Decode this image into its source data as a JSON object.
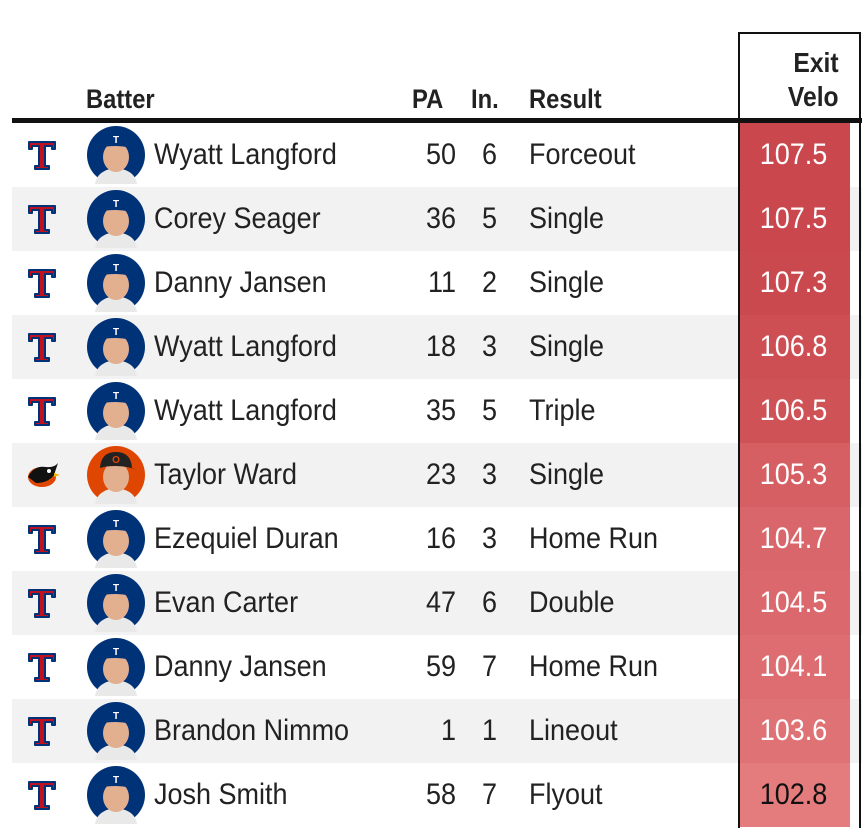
{
  "header": {
    "batter": "Batter",
    "pa": "PA",
    "inning": "In.",
    "result": "Result",
    "exit_velo_line1": "Exit",
    "exit_velo_line2": "Velo"
  },
  "colors": {
    "velo_high": "#c9474d",
    "velo_low": "#e47b7d",
    "rangers_red": "#c0111f",
    "rangers_blue": "#003278",
    "orioles_orange": "#df4601"
  },
  "chart_data": {
    "type": "table",
    "columns": [
      "Batter",
      "PA",
      "In.",
      "Result",
      "Exit Velo"
    ],
    "rows": [
      {
        "team_icon": "rangers-logo-icon",
        "batter": "Wyatt Langford",
        "pa": "50",
        "inning": "6",
        "result": "Forceout",
        "exit_velo": "107.5"
      },
      {
        "team_icon": "rangers-logo-icon",
        "batter": "Corey Seager",
        "pa": "36",
        "inning": "5",
        "result": "Single",
        "exit_velo": "107.5"
      },
      {
        "team_icon": "rangers-logo-icon",
        "batter": "Danny Jansen",
        "pa": "11",
        "inning": "2",
        "result": "Single",
        "exit_velo": "107.3"
      },
      {
        "team_icon": "rangers-logo-icon",
        "batter": "Wyatt Langford",
        "pa": "18",
        "inning": "3",
        "result": "Single",
        "exit_velo": "106.8"
      },
      {
        "team_icon": "rangers-logo-icon",
        "batter": "Wyatt Langford",
        "pa": "35",
        "inning": "5",
        "result": "Triple",
        "exit_velo": "106.5"
      },
      {
        "team_icon": "orioles-logo-icon",
        "batter": "Taylor Ward",
        "pa": "23",
        "inning": "3",
        "result": "Single",
        "exit_velo": "105.3"
      },
      {
        "team_icon": "rangers-logo-icon",
        "batter": "Ezequiel Duran",
        "pa": "16",
        "inning": "3",
        "result": "Home Run",
        "exit_velo": "104.7"
      },
      {
        "team_icon": "rangers-logo-icon",
        "batter": "Evan Carter",
        "pa": "47",
        "inning": "6",
        "result": "Double",
        "exit_velo": "104.5"
      },
      {
        "team_icon": "rangers-logo-icon",
        "batter": "Danny Jansen",
        "pa": "59",
        "inning": "7",
        "result": "Home Run",
        "exit_velo": "104.1"
      },
      {
        "team_icon": "rangers-logo-icon",
        "batter": "Brandon Nimmo",
        "pa": "1",
        "inning": "1",
        "result": "Lineout",
        "exit_velo": "103.6"
      },
      {
        "team_icon": "rangers-logo-icon",
        "batter": "Josh Smith",
        "pa": "58",
        "inning": "7",
        "result": "Flyout",
        "exit_velo": "102.8"
      }
    ]
  }
}
